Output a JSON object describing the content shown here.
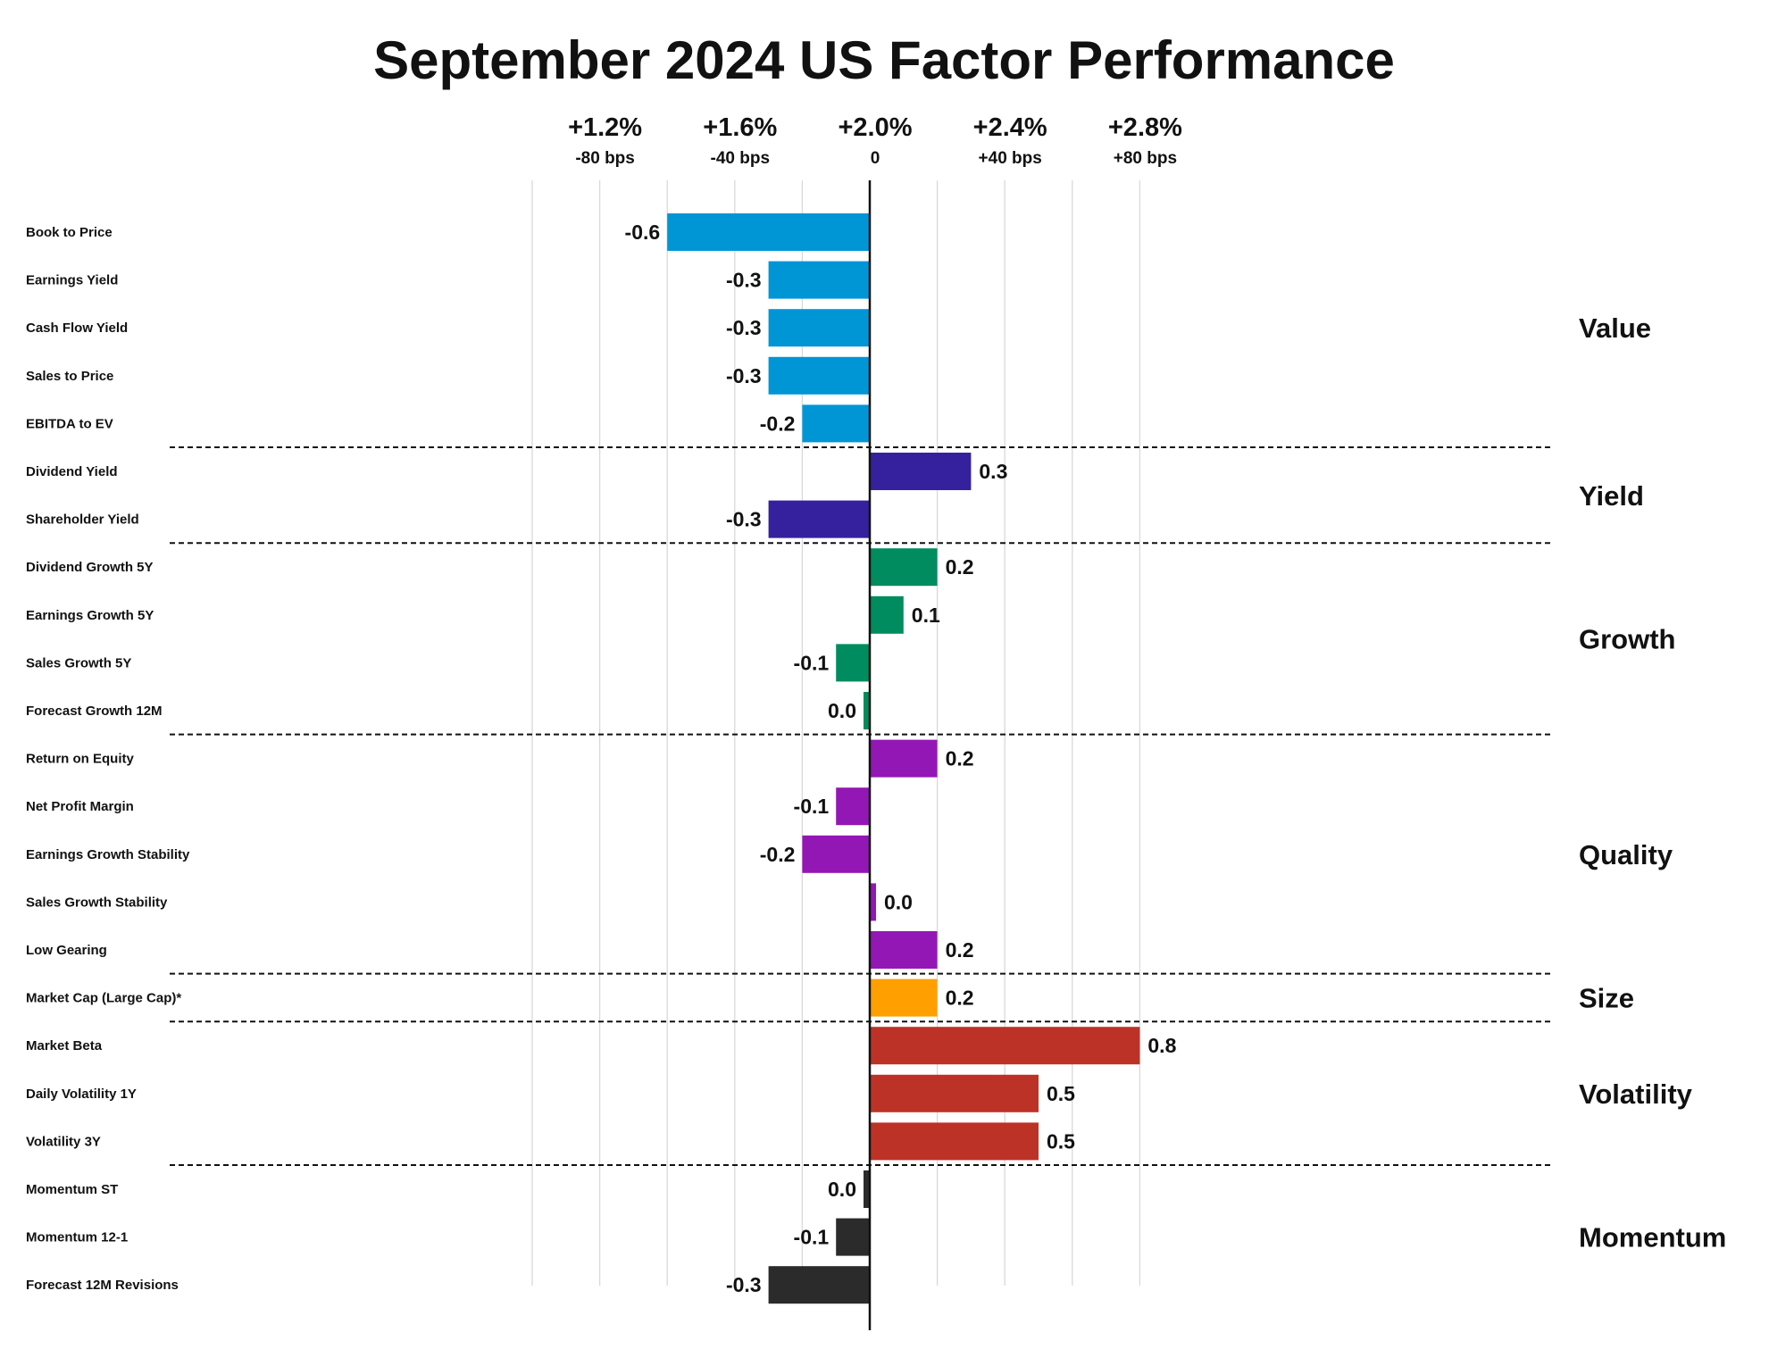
{
  "chart_data": {
    "type": "bar",
    "orientation": "horizontal",
    "title": "September 2024 US Factor Performance",
    "x_axis": {
      "ticks": [
        {
          "value": -80,
          "main_label": "+1.2%",
          "sub_label": "-80 bps"
        },
        {
          "value": -40,
          "main_label": "+1.6%",
          "sub_label": "-40 bps"
        },
        {
          "value": 0,
          "main_label": "+2.0%",
          "sub_label": "0"
        },
        {
          "value": 40,
          "main_label": "+2.4%",
          "sub_label": "+40 bps"
        },
        {
          "value": 80,
          "main_label": "+2.8%",
          "sub_label": "+80 bps"
        }
      ],
      "gridlines": [
        -100,
        -80,
        -60,
        -40,
        -20,
        20,
        40,
        60,
        80
      ],
      "xlim": [
        -100,
        95
      ]
    },
    "groups": [
      {
        "name": "Value",
        "color": "#0096D6",
        "factors": [
          {
            "label": "Book to Price",
            "value": -0.6,
            "value_label": "-0.6"
          },
          {
            "label": "Earnings Yield",
            "value": -0.3,
            "value_label": "-0.3"
          },
          {
            "label": "Cash Flow Yield",
            "value": -0.3,
            "value_label": "-0.3"
          },
          {
            "label": "Sales to Price",
            "value": -0.3,
            "value_label": "-0.3"
          },
          {
            "label": "EBITDA to EV",
            "value": -0.2,
            "value_label": "-0.2"
          }
        ]
      },
      {
        "name": "Yield",
        "color": "#35219E",
        "factors": [
          {
            "label": "Dividend Yield",
            "value": 0.3,
            "value_label": "0.3"
          },
          {
            "label": "Shareholder Yield",
            "value": -0.3,
            "value_label": "-0.3"
          }
        ]
      },
      {
        "name": "Growth",
        "color": "#008C5E",
        "factors": [
          {
            "label": "Dividend Growth 5Y",
            "value": 0.2,
            "value_label": "0.2"
          },
          {
            "label": "Earnings Growth 5Y",
            "value": 0.1,
            "value_label": "0.1"
          },
          {
            "label": "Sales Growth 5Y",
            "value": -0.1,
            "value_label": "-0.1"
          },
          {
            "label": "Forecast Growth 12M",
            "value": 0.0,
            "value_label": "0.0"
          }
        ]
      },
      {
        "name": "Quality",
        "color": "#9317B5",
        "factors": [
          {
            "label": "Return on Equity",
            "value": 0.2,
            "value_label": "0.2"
          },
          {
            "label": "Net Profit Margin",
            "value": -0.1,
            "value_label": "-0.1"
          },
          {
            "label": "Earnings Growth Stability",
            "value": -0.2,
            "value_label": "-0.2"
          },
          {
            "label": "Sales Growth Stability",
            "value": 0.0,
            "value_label": "0.0"
          },
          {
            "label": "Low Gearing",
            "value": 0.2,
            "value_label": "0.2"
          }
        ]
      },
      {
        "name": "Size",
        "color": "#FFA000",
        "factors": [
          {
            "label": "Market Cap (Large Cap)*",
            "value": 0.2,
            "value_label": "0.2"
          }
        ]
      },
      {
        "name": "Volatility",
        "color": "#BD3226",
        "factors": [
          {
            "label": "Market Beta",
            "value": 0.8,
            "value_label": "0.8"
          },
          {
            "label": "Daily Volatility 1Y",
            "value": 0.5,
            "value_label": "0.5"
          },
          {
            "label": "Volatility 3Y",
            "value": 0.5,
            "value_label": "0.5"
          }
        ]
      },
      {
        "name": "Momentum",
        "color": "#2B2B2B",
        "factors": [
          {
            "label": "Momentum ST",
            "value": 0.0,
            "value_label": "0.0"
          },
          {
            "label": "Momentum 12-1",
            "value": -0.1,
            "value_label": "-0.1"
          },
          {
            "label": "Forecast 12M Revisions",
            "value": -0.3,
            "value_label": "-0.3"
          }
        ]
      }
    ],
    "grid": true,
    "gridline_color": "#d9d9d9",
    "separator_style": "dashed"
  }
}
